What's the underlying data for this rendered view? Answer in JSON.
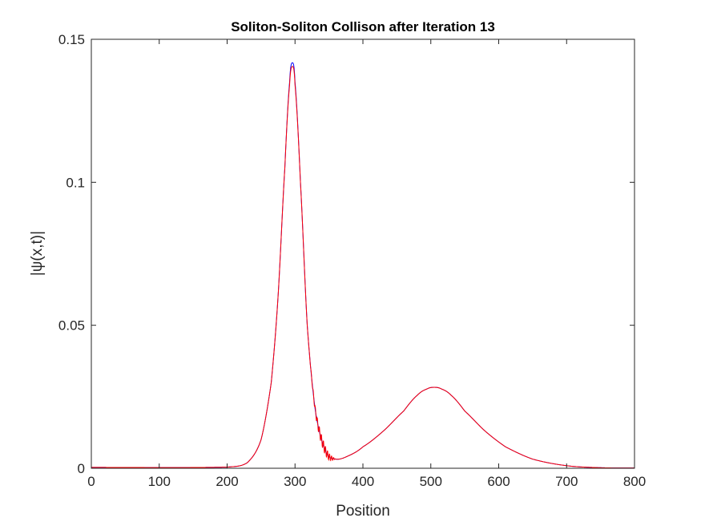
{
  "chart_data": {
    "type": "line",
    "title": "Soliton-Soliton Collison after Iteration 13",
    "xlabel": "Position",
    "ylabel": "|ψ(x,t)|",
    "xlim": [
      0,
      800
    ],
    "ylim": [
      0,
      0.15
    ],
    "xticks": [
      "0",
      "100",
      "200",
      "300",
      "400",
      "500",
      "600",
      "700",
      "800"
    ],
    "yticks": [
      "0",
      "0.05",
      "0.1",
      "0.15"
    ],
    "grid": false,
    "legend": "none",
    "series": [
      {
        "color": "#0000ff",
        "points": [
          [
            0,
            0.0003
          ],
          [
            200,
            0.0004
          ],
          [
            230,
            0.002
          ],
          [
            250,
            0.01
          ],
          [
            265,
            0.03
          ],
          [
            275,
            0.06
          ],
          [
            285,
            0.105
          ],
          [
            292,
            0.135
          ],
          [
            296,
            0.1418
          ],
          [
            300,
            0.135
          ],
          [
            308,
            0.1
          ],
          [
            318,
            0.05
          ],
          [
            330,
            0.02
          ],
          [
            345,
            0.006
          ],
          [
            360,
            0.0032
          ],
          [
            380,
            0.0045
          ],
          [
            400,
            0.0075
          ],
          [
            430,
            0.013
          ],
          [
            460,
            0.02
          ],
          [
            480,
            0.0255
          ],
          [
            495,
            0.0278
          ],
          [
            505,
            0.0283
          ],
          [
            515,
            0.0278
          ],
          [
            530,
            0.0255
          ],
          [
            550,
            0.02
          ],
          [
            580,
            0.013
          ],
          [
            610,
            0.0075
          ],
          [
            650,
            0.0032
          ],
          [
            700,
            0.0009
          ],
          [
            750,
            0.0002
          ],
          [
            800,
            0.0001
          ]
        ]
      },
      {
        "color": "#ff0000",
        "points": [
          [
            0,
            0.0003
          ],
          [
            200,
            0.0004
          ],
          [
            230,
            0.002
          ],
          [
            250,
            0.01
          ],
          [
            265,
            0.03
          ],
          [
            275,
            0.06
          ],
          [
            285,
            0.105
          ],
          [
            292,
            0.134
          ],
          [
            296,
            0.1405
          ],
          [
            300,
            0.134
          ],
          [
            308,
            0.1
          ],
          [
            318,
            0.05
          ],
          [
            330,
            0.02
          ],
          [
            345,
            0.006
          ],
          [
            360,
            0.0032
          ],
          [
            380,
            0.0045
          ],
          [
            400,
            0.0075
          ],
          [
            430,
            0.013
          ],
          [
            460,
            0.02
          ],
          [
            480,
            0.0255
          ],
          [
            495,
            0.0278
          ],
          [
            505,
            0.0283
          ],
          [
            515,
            0.0278
          ],
          [
            530,
            0.0255
          ],
          [
            550,
            0.02
          ],
          [
            580,
            0.013
          ],
          [
            610,
            0.0075
          ],
          [
            650,
            0.0032
          ],
          [
            700,
            0.0009
          ],
          [
            750,
            0.0002
          ],
          [
            800,
            0.0001
          ]
        ],
        "ripple_region": [
          320,
          360
        ]
      }
    ]
  },
  "colors": {
    "axis": "#262626",
    "background": "#ffffff"
  }
}
